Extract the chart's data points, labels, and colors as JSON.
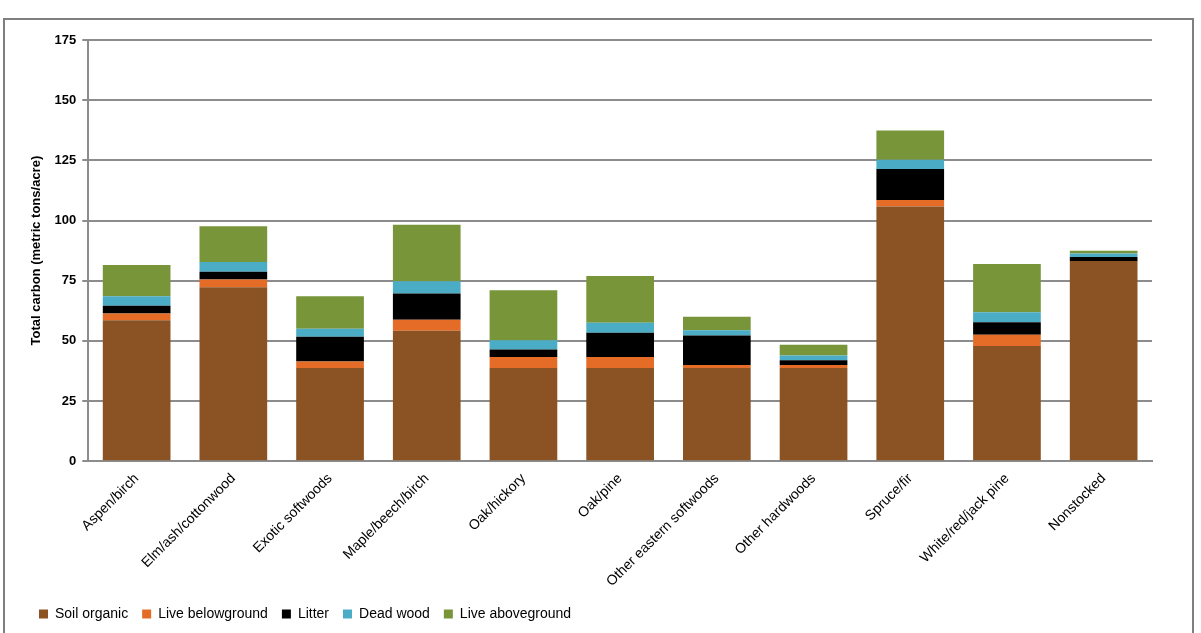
{
  "chart_data": {
    "type": "bar",
    "stacked": true,
    "ylabel": "Total carbon (metric tons/acre)",
    "categories": [
      "Aspen/birch",
      "Elm/ash/cottonwood",
      "Exotic softwoods",
      "Maple/beech/birch",
      "Oak/hickory",
      "Oak/pine",
      "Other eastern softwoods",
      "Other hardwoods",
      "Spruce/fir",
      "White/red/jack pine",
      "Nonstocked"
    ],
    "series": [
      {
        "name": "Soil organic",
        "color": "#8b5323",
        "values": [
          58.6,
          72.3,
          38.7,
          54.2,
          38.7,
          38.7,
          38.7,
          38.7,
          105.8,
          47.9,
          83.2
        ]
      },
      {
        "name": "Live belowground",
        "color": "#e46c27",
        "values": [
          2.8,
          3.2,
          2.7,
          4.6,
          4.6,
          4.6,
          1.3,
          1.3,
          2.7,
          4.7,
          null
        ]
      },
      {
        "name": "Litter",
        "color": "#000000",
        "values": [
          3.2,
          3.2,
          10.3,
          10.9,
          3.1,
          10.1,
          12.2,
          2.0,
          12.9,
          5.2,
          1.7
        ]
      },
      {
        "name": "Dead wood",
        "color": "#4bacc6",
        "values": [
          3.9,
          4.1,
          3.3,
          5.1,
          3.9,
          4.1,
          2.2,
          1.9,
          3.9,
          4.1,
          1.4
        ]
      },
      {
        "name": "Live aboveground",
        "color": "#79953a",
        "values": [
          13.0,
          14.8,
          13.5,
          23.5,
          20.7,
          19.5,
          5.6,
          4.5,
          12.1,
          20.1,
          1.2
        ]
      }
    ],
    "ylim": [
      0,
      175
    ],
    "yticks": [
      0,
      25,
      50,
      75,
      100,
      125,
      150,
      175
    ],
    "grid": "y",
    "legend": "bottom"
  }
}
